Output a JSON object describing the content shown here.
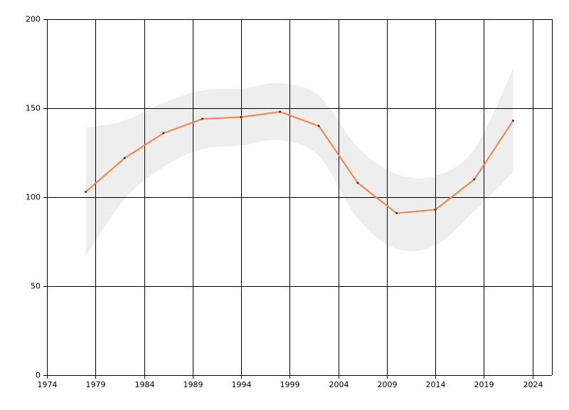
{
  "chart_data": {
    "type": "line",
    "x": [
      1978,
      1982,
      1986,
      1990,
      1994,
      1998,
      2002,
      2006,
      2010,
      2014,
      2018,
      2022
    ],
    "values": [
      103,
      122,
      136,
      144,
      145,
      148,
      140,
      108,
      91,
      93,
      110,
      143
    ],
    "color": "#ff7f3f",
    "band": {
      "upper": [
        139,
        143,
        153,
        160,
        161,
        164,
        157,
        128,
        113,
        112,
        127,
        172
      ],
      "lower": [
        67,
        99,
        117,
        127,
        129,
        132,
        123,
        88,
        71,
        73,
        92,
        114
      ],
      "color": "#eeeeee"
    },
    "xlim": [
      1974,
      2026
    ],
    "xticks": [
      1974,
      1979,
      1984,
      1989,
      1994,
      1999,
      2004,
      2009,
      2014,
      2019,
      2024
    ],
    "ylim": [
      0,
      200
    ],
    "yticks": [
      0,
      50,
      100,
      150,
      200
    ],
    "grid": true
  }
}
